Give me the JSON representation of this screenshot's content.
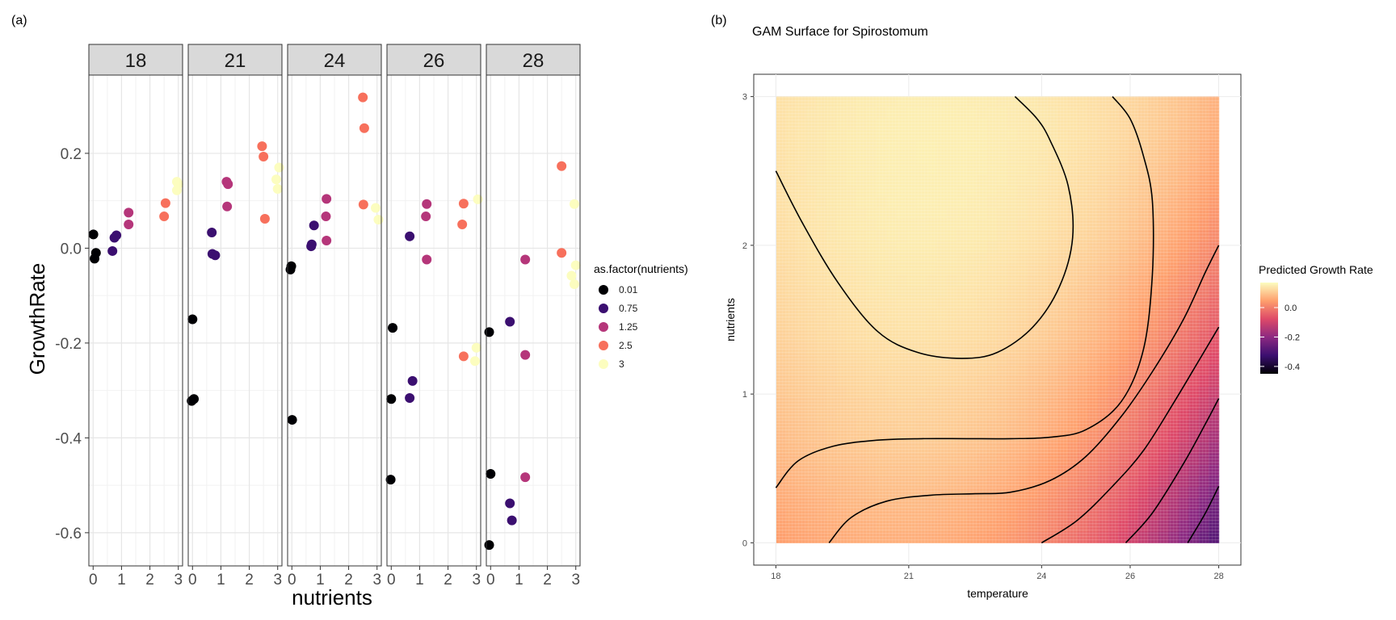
{
  "chart_data": [
    {
      "type": "scatter",
      "panel_label": "(a)",
      "facet_values": [
        "18",
        "21",
        "24",
        "26",
        "28"
      ],
      "xlabel": "nutrients",
      "ylabel": "GrowthRate",
      "x_ticks": [
        0,
        1,
        2,
        3
      ],
      "x_tick_labels": [
        "0",
        "1",
        "2",
        "3"
      ],
      "y_ticks": [
        0.2,
        0.0,
        -0.2,
        -0.4,
        -0.6
      ],
      "y_tick_labels": [
        "0.2",
        "0.0",
        "-0.2",
        "-0.4",
        "-0.6"
      ],
      "xlim": [
        -0.15,
        3.15
      ],
      "ylim": [
        -0.67,
        0.365
      ],
      "grid": true,
      "legend": {
        "title": "as.factor(nutrients)",
        "placement": "right",
        "entries": [
          {
            "label": "0.01",
            "color": "#000004"
          },
          {
            "label": "0.75",
            "color": "#3b0f70"
          },
          {
            "label": "1.25",
            "color": "#b5367a"
          },
          {
            "label": "2.5",
            "color": "#f7705c"
          },
          {
            "label": "3",
            "color": "#fcfdbf"
          }
        ]
      },
      "series": [
        {
          "facet": "18",
          "points": [
            {
              "x": 0.01,
              "y": 0.029,
              "level": 0
            },
            {
              "x": 0.05,
              "y": -0.022,
              "level": 0
            },
            {
              "x": 0.1,
              "y": -0.01,
              "level": 0
            },
            {
              "x": 0.68,
              "y": -0.006,
              "level": 1
            },
            {
              "x": 0.75,
              "y": 0.022,
              "level": 1
            },
            {
              "x": 0.82,
              "y": 0.027,
              "level": 1
            },
            {
              "x": 1.25,
              "y": 0.075,
              "level": 2
            },
            {
              "x": 1.25,
              "y": 0.05,
              "level": 2
            },
            {
              "x": 2.5,
              "y": 0.067,
              "level": 3
            },
            {
              "x": 2.55,
              "y": 0.095,
              "level": 3
            },
            {
              "x": 2.95,
              "y": 0.14,
              "level": 4
            },
            {
              "x": 3.0,
              "y": 0.135,
              "level": 4
            },
            {
              "x": 2.95,
              "y": 0.122,
              "level": 4
            }
          ]
        },
        {
          "facet": "21",
          "points": [
            {
              "x": 0.0,
              "y": -0.15,
              "level": 0
            },
            {
              "x": -0.03,
              "y": -0.322,
              "level": 0
            },
            {
              "x": 0.05,
              "y": -0.318,
              "level": 0
            },
            {
              "x": 0.68,
              "y": 0.033,
              "level": 1
            },
            {
              "x": 0.7,
              "y": -0.012,
              "level": 1
            },
            {
              "x": 0.8,
              "y": -0.015,
              "level": 1
            },
            {
              "x": 1.2,
              "y": 0.14,
              "level": 2
            },
            {
              "x": 1.25,
              "y": 0.135,
              "level": 2
            },
            {
              "x": 1.22,
              "y": 0.088,
              "level": 2
            },
            {
              "x": 2.45,
              "y": 0.215,
              "level": 3
            },
            {
              "x": 2.5,
              "y": 0.193,
              "level": 3
            },
            {
              "x": 2.55,
              "y": 0.062,
              "level": 3
            },
            {
              "x": 3.05,
              "y": 0.17,
              "level": 4
            },
            {
              "x": 2.95,
              "y": 0.145,
              "level": 4
            },
            {
              "x": 3.0,
              "y": 0.125,
              "level": 4
            }
          ]
        },
        {
          "facet": "24",
          "points": [
            {
              "x": -0.02,
              "y": -0.038,
              "level": 0
            },
            {
              "x": -0.05,
              "y": -0.045,
              "level": 0
            },
            {
              "x": 0.01,
              "y": -0.362,
              "level": 0
            },
            {
              "x": 0.68,
              "y": 0.004,
              "level": 1
            },
            {
              "x": 0.7,
              "y": 0.008,
              "level": 1
            },
            {
              "x": 0.78,
              "y": 0.048,
              "level": 1
            },
            {
              "x": 1.22,
              "y": 0.104,
              "level": 2
            },
            {
              "x": 1.2,
              "y": 0.067,
              "level": 2
            },
            {
              "x": 1.22,
              "y": 0.016,
              "level": 2
            },
            {
              "x": 2.5,
              "y": 0.318,
              "level": 3
            },
            {
              "x": 2.55,
              "y": 0.253,
              "level": 3
            },
            {
              "x": 2.52,
              "y": 0.092,
              "level": 3
            },
            {
              "x": 2.95,
              "y": 0.085,
              "level": 4
            },
            {
              "x": 3.05,
              "y": 0.06,
              "level": 4
            }
          ]
        },
        {
          "facet": "26",
          "points": [
            {
              "x": 0.05,
              "y": -0.168,
              "level": 0
            },
            {
              "x": 0.0,
              "y": -0.318,
              "level": 0
            },
            {
              "x": -0.02,
              "y": -0.488,
              "level": 0
            },
            {
              "x": 0.65,
              "y": 0.025,
              "level": 1
            },
            {
              "x": 0.75,
              "y": -0.28,
              "level": 1
            },
            {
              "x": 0.65,
              "y": -0.316,
              "level": 1
            },
            {
              "x": 1.25,
              "y": 0.093,
              "level": 2
            },
            {
              "x": 1.22,
              "y": 0.067,
              "level": 2
            },
            {
              "x": 1.25,
              "y": -0.024,
              "level": 2
            },
            {
              "x": 2.55,
              "y": 0.094,
              "level": 3
            },
            {
              "x": 2.5,
              "y": 0.05,
              "level": 3
            },
            {
              "x": 2.55,
              "y": -0.228,
              "level": 3
            },
            {
              "x": 3.05,
              "y": 0.103,
              "level": 4
            },
            {
              "x": 3.0,
              "y": -0.21,
              "level": 4
            },
            {
              "x": 2.95,
              "y": -0.238,
              "level": 4
            }
          ]
        },
        {
          "facet": "28",
          "points": [
            {
              "x": -0.05,
              "y": -0.177,
              "level": 0
            },
            {
              "x": 0.0,
              "y": -0.476,
              "level": 0
            },
            {
              "x": -0.05,
              "y": -0.626,
              "level": 0
            },
            {
              "x": 0.68,
              "y": -0.155,
              "level": 1
            },
            {
              "x": 0.68,
              "y": -0.538,
              "level": 1
            },
            {
              "x": 0.75,
              "y": -0.574,
              "level": 1
            },
            {
              "x": 1.22,
              "y": -0.024,
              "level": 2
            },
            {
              "x": 1.22,
              "y": -0.225,
              "level": 2
            },
            {
              "x": 1.22,
              "y": -0.483,
              "level": 2
            },
            {
              "x": 2.5,
              "y": 0.173,
              "level": 3
            },
            {
              "x": 2.5,
              "y": -0.01,
              "level": 3
            },
            {
              "x": 2.95,
              "y": 0.093,
              "level": 4
            },
            {
              "x": 3.0,
              "y": -0.036,
              "level": 4
            },
            {
              "x": 2.85,
              "y": -0.058,
              "level": 4
            },
            {
              "x": 2.95,
              "y": -0.076,
              "level": 4
            }
          ]
        }
      ]
    },
    {
      "type": "heatmap",
      "panel_label": "(b)",
      "title": "GAM Surface for Spirostomum",
      "xlabel": "temperature",
      "ylabel": "nutrients",
      "x_ticks": [
        18,
        21,
        24,
        26,
        28
      ],
      "x_tick_labels": [
        "18",
        "21",
        "24",
        "26",
        "28"
      ],
      "y_ticks": [
        0,
        1,
        2,
        3
      ],
      "y_tick_labels": [
        "0",
        "1",
        "2",
        "3"
      ],
      "xlim": [
        17.5,
        28.5
      ],
      "ylim": [
        -0.15,
        3.15
      ],
      "grid": true,
      "legend": {
        "title": "Predicted Growth Rate",
        "placement": "right",
        "range": [
          -0.45,
          0.17
        ],
        "ticks": [
          0.0,
          -0.2,
          -0.4
        ],
        "tick_labels": [
          "0.0",
          "-0.2",
          "-0.4"
        ],
        "colors": [
          "#000004",
          "#3b0f70",
          "#8c2981",
          "#de4968",
          "#fe9f6d",
          "#fcfdbf"
        ]
      },
      "contours": [
        {
          "level": 0.1,
          "points": [
            [
              18.0,
              2.5
            ],
            [
              18.6,
              2.15
            ],
            [
              19.4,
              1.75
            ],
            [
              20.3,
              1.42
            ],
            [
              21.2,
              1.28
            ],
            [
              22.2,
              1.24
            ],
            [
              23.0,
              1.28
            ],
            [
              23.8,
              1.45
            ],
            [
              24.4,
              1.72
            ],
            [
              24.7,
              2.05
            ],
            [
              24.6,
              2.4
            ],
            [
              24.2,
              2.7
            ],
            [
              23.9,
              2.85
            ],
            [
              23.4,
              3.0
            ]
          ]
        },
        {
          "level": 0.0,
          "points": [
            [
              18.0,
              0.37
            ],
            [
              18.5,
              0.55
            ],
            [
              19.3,
              0.65
            ],
            [
              20.3,
              0.69
            ],
            [
              21.3,
              0.7
            ],
            [
              22.3,
              0.7
            ],
            [
              23.3,
              0.7
            ],
            [
              24.2,
              0.71
            ],
            [
              25.0,
              0.76
            ],
            [
              25.8,
              0.95
            ],
            [
              26.3,
              1.3
            ],
            [
              26.5,
              1.8
            ],
            [
              26.5,
              2.3
            ],
            [
              26.3,
              2.6
            ],
            [
              26.0,
              2.85
            ],
            [
              25.6,
              3.0
            ]
          ]
        },
        {
          "level": -0.1,
          "points": [
            [
              19.2,
              0.0
            ],
            [
              19.7,
              0.17
            ],
            [
              20.5,
              0.28
            ],
            [
              21.5,
              0.32
            ],
            [
              22.5,
              0.33
            ],
            [
              23.3,
              0.34
            ],
            [
              24.2,
              0.42
            ],
            [
              25.0,
              0.58
            ],
            [
              25.8,
              0.85
            ],
            [
              26.5,
              1.15
            ],
            [
              27.2,
              1.5
            ],
            [
              27.7,
              1.82
            ],
            [
              28.0,
              2.0
            ]
          ]
        },
        {
          "level": -0.2,
          "points": [
            [
              24.0,
              0.0
            ],
            [
              24.8,
              0.15
            ],
            [
              25.6,
              0.38
            ],
            [
              26.3,
              0.62
            ],
            [
              27.0,
              0.95
            ],
            [
              27.6,
              1.25
            ],
            [
              28.0,
              1.45
            ]
          ]
        },
        {
          "level": -0.3,
          "points": [
            [
              25.9,
              0.0
            ],
            [
              26.5,
              0.2
            ],
            [
              27.2,
              0.53
            ],
            [
              27.7,
              0.8
            ],
            [
              28.0,
              0.97
            ]
          ]
        },
        {
          "level": -0.4,
          "points": [
            [
              27.3,
              0.0
            ],
            [
              27.7,
              0.2
            ],
            [
              28.0,
              0.38
            ]
          ]
        }
      ]
    }
  ]
}
